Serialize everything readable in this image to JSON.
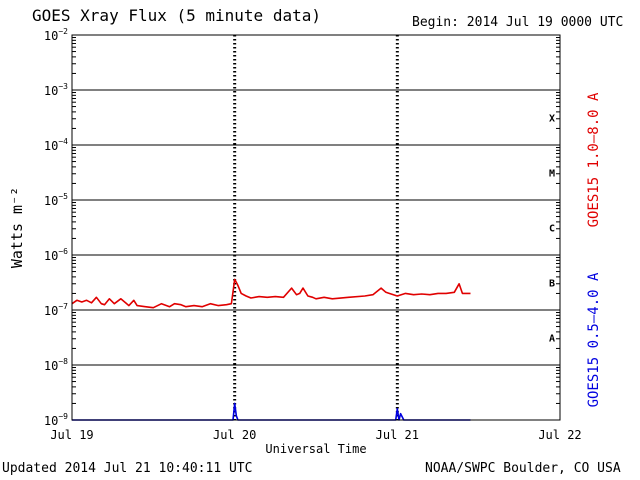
{
  "header": {
    "title": "GOES Xray Flux (5 minute data)",
    "begin": "Begin:  2014 Jul 19 0000 UTC"
  },
  "footer": {
    "updated": "Updated 2014 Jul 21 10:40:11 UTC",
    "credit": "NOAA/SWPC Boulder, CO USA"
  },
  "chart_data": {
    "type": "line",
    "title": "GOES Xray Flux (5 minute data)",
    "xlabel": "Universal Time",
    "ylabel": "Watts m⁻²",
    "yscale": "log",
    "x_unit": "days from 2014 Jul 19 0000 UTC",
    "xlim": [
      0,
      3
    ],
    "ylim": [
      1e-09,
      0.01
    ],
    "x_ticks": [
      {
        "value": 0,
        "label": "Jul 19"
      },
      {
        "value": 1,
        "label": "Jul 20"
      },
      {
        "value": 2,
        "label": "Jul 21"
      },
      {
        "value": 3,
        "label": "Jul 22"
      }
    ],
    "y_ticks": [
      {
        "exp": -9,
        "base": "10",
        "sup": "−9"
      },
      {
        "exp": -8,
        "base": "10",
        "sup": "−8"
      },
      {
        "exp": -7,
        "base": "10",
        "sup": "−7"
      },
      {
        "exp": -6,
        "base": "10",
        "sup": "−6"
      },
      {
        "exp": -5,
        "base": "10",
        "sup": "−5"
      },
      {
        "exp": -4,
        "base": "10",
        "sup": "−4"
      },
      {
        "exp": -3,
        "base": "10",
        "sup": "−3"
      },
      {
        "exp": -2,
        "base": "10",
        "sup": "−2"
      }
    ],
    "flare_classes": [
      {
        "label": "X",
        "exp": -3.5
      },
      {
        "label": "M",
        "exp": -4.5
      },
      {
        "label": "C",
        "exp": -5.5
      },
      {
        "label": "B",
        "exp": -6.5
      },
      {
        "label": "A",
        "exp": -7.5
      }
    ],
    "grid": true,
    "series": [
      {
        "name": "GOES15 1.0–8.0 A",
        "color": "#e00000",
        "x": [
          0.0,
          0.03,
          0.06,
          0.09,
          0.12,
          0.15,
          0.18,
          0.2,
          0.23,
          0.26,
          0.3,
          0.35,
          0.38,
          0.4,
          0.45,
          0.5,
          0.55,
          0.6,
          0.63,
          0.67,
          0.7,
          0.75,
          0.8,
          0.85,
          0.9,
          0.95,
          0.98,
          1.0,
          1.02,
          1.04,
          1.07,
          1.1,
          1.15,
          1.2,
          1.25,
          1.3,
          1.35,
          1.38,
          1.4,
          1.42,
          1.45,
          1.48,
          1.5,
          1.55,
          1.6,
          1.7,
          1.8,
          1.85,
          1.9,
          1.93,
          1.95,
          2.0,
          2.05,
          2.1,
          2.15,
          2.2,
          2.25,
          2.3,
          2.35,
          2.38,
          2.4,
          2.45
        ],
        "y": [
          1.3e-07,
          1.5e-07,
          1.4e-07,
          1.5e-07,
          1.35e-07,
          1.7e-07,
          1.3e-07,
          1.25e-07,
          1.6e-07,
          1.3e-07,
          1.6e-07,
          1.2e-07,
          1.5e-07,
          1.2e-07,
          1.15e-07,
          1.1e-07,
          1.3e-07,
          1.15e-07,
          1.3e-07,
          1.25e-07,
          1.15e-07,
          1.2e-07,
          1.15e-07,
          1.3e-07,
          1.2e-07,
          1.25e-07,
          1.3e-07,
          3.6e-07,
          2.8e-07,
          2e-07,
          1.8e-07,
          1.65e-07,
          1.75e-07,
          1.7e-07,
          1.75e-07,
          1.7e-07,
          2.5e-07,
          1.9e-07,
          2e-07,
          2.5e-07,
          1.8e-07,
          1.7e-07,
          1.6e-07,
          1.7e-07,
          1.6e-07,
          1.7e-07,
          1.8e-07,
          1.9e-07,
          2.5e-07,
          2.1e-07,
          2e-07,
          1.8e-07,
          2e-07,
          1.9e-07,
          1.95e-07,
          1.9e-07,
          2e-07,
          2e-07,
          2.1e-07,
          3e-07,
          2e-07,
          2e-07
        ]
      },
      {
        "name": "GOES15 0.5–4.0 A",
        "color": "#0000e0",
        "x": [
          0.0,
          0.99,
          1.0,
          1.01,
          1.02,
          1.99,
          2.0,
          2.01,
          2.02,
          2.04,
          2.05,
          2.45
        ],
        "y": [
          1e-09,
          1e-09,
          2e-09,
          1.2e-09,
          1e-09,
          1e-09,
          1.6e-09,
          1e-09,
          1.3e-09,
          1e-09,
          1e-09,
          1e-09
        ]
      }
    ]
  }
}
